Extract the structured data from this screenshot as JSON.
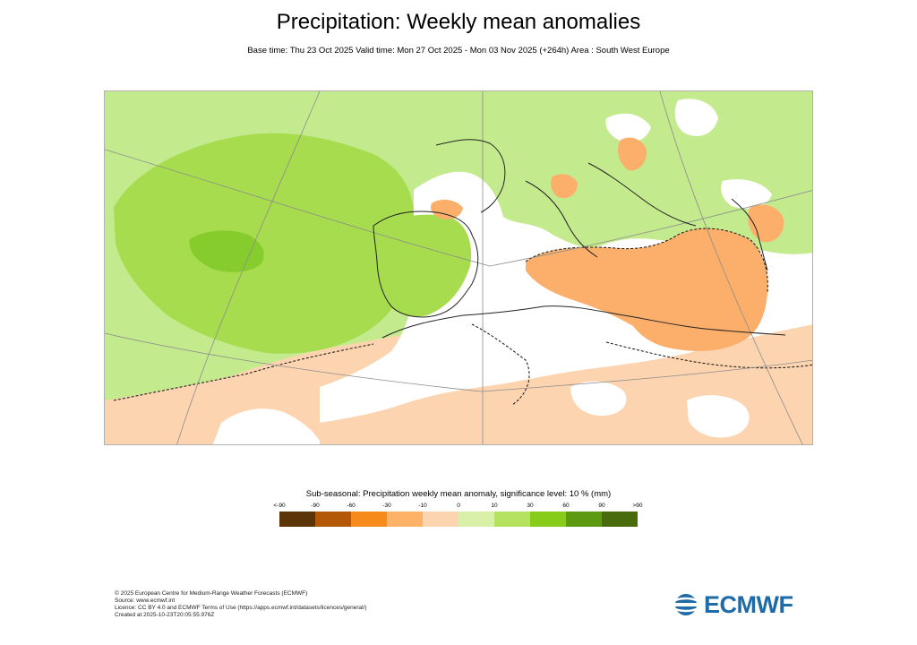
{
  "header": {
    "title": "Precipitation: Weekly mean anomalies",
    "subtitle": "Base time: Thu 23 Oct 2025 Valid time: Mon 27 Oct 2025 - Mon 03 Nov 2025 (+264h) Area : South West Europe"
  },
  "legend": {
    "title": "Sub-seasonal: Precipitation weekly mean anomaly, significance level: 10 % (mm)",
    "ticks": [
      "<-90",
      "-90",
      "-60",
      "-30",
      "-10",
      "0",
      "10",
      "30",
      "60",
      "90",
      ">90"
    ],
    "colors": [
      "#5b3408",
      "#b35806",
      "#f68a1a",
      "#fdb366",
      "#fdd4b0",
      "#d9f0a8",
      "#b6e35f",
      "#88cc1a",
      "#5e9912",
      "#4a6b0c"
    ]
  },
  "map_colors": {
    "ocean_default": "#c4ea8e",
    "strong_green": "#a6dc4e",
    "peak_green": "#86cc2c",
    "light_orange": "#fdd4b0",
    "mid_orange": "#fbaf6a",
    "no_signal": "#ffffff",
    "coastline": "#222222",
    "graticule": "#8c8c8c"
  },
  "footer": {
    "lines": [
      "© 2025 European Centre for Medium-Range Weather Forecasts (ECMWF)",
      "Source: www.ecmwf.int",
      "Licence: CC BY 4.0 and ECMWF Terms of Use (https://apps.ecmwf.int/datasets/licences/general/)",
      "Created at 2025-10-23T20:05:55.976Z"
    ]
  },
  "logo": {
    "text": "ECMWF",
    "color": "#1e6ba8"
  }
}
